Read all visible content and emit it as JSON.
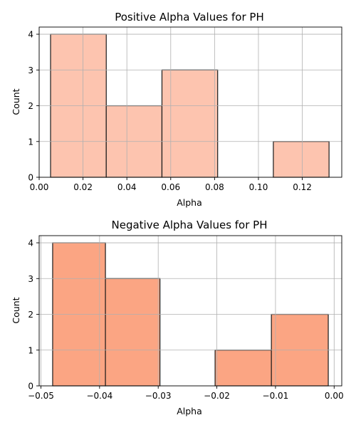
{
  "chart_data": [
    {
      "type": "bar",
      "title": "Positive Alpha Values for PH",
      "xlabel": "Alpha",
      "ylabel": "Count",
      "xlim": [
        0.0,
        0.138
      ],
      "ylim": [
        0,
        4.2
      ],
      "grid": true,
      "bar_color": "#fdc4af",
      "xticks": [
        "0.00",
        "0.02",
        "0.04",
        "0.06",
        "0.08",
        "0.10",
        "0.12"
      ],
      "yticks": [
        "0",
        "1",
        "2",
        "3",
        "4"
      ],
      "bins": [
        {
          "x0": 0.0052,
          "x1": 0.0306,
          "count": 4
        },
        {
          "x0": 0.0306,
          "x1": 0.056,
          "count": 2
        },
        {
          "x0": 0.056,
          "x1": 0.0814,
          "count": 3
        },
        {
          "x0": 0.0814,
          "x1": 0.1068,
          "count": 0
        },
        {
          "x0": 0.1068,
          "x1": 0.1322,
          "count": 1
        }
      ]
    },
    {
      "type": "bar",
      "title": "Negative Alpha Values for PH",
      "xlabel": "Alpha",
      "ylabel": "Count",
      "xlim": [
        -0.0503,
        0.0013
      ],
      "ylim": [
        0,
        4.2
      ],
      "grid": true,
      "bar_color": "#fba583",
      "xticks": [
        "−0.05",
        "−0.04",
        "−0.03",
        "−0.02",
        "−0.01",
        "0.00"
      ],
      "yticks": [
        "0",
        "1",
        "2",
        "3",
        "4"
      ],
      "bins": [
        {
          "x0": -0.048,
          "x1": -0.039,
          "count": 4
        },
        {
          "x0": -0.039,
          "x1": -0.0297,
          "count": 3
        },
        {
          "x0": -0.0297,
          "x1": -0.0203,
          "count": 0
        },
        {
          "x0": -0.0203,
          "x1": -0.0107,
          "count": 1
        },
        {
          "x0": -0.0107,
          "x1": -0.001,
          "count": 2
        }
      ]
    }
  ]
}
